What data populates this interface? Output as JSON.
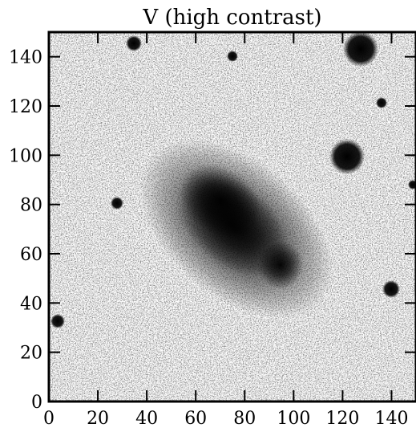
{
  "title": "V (high contrast)",
  "axes": {
    "x_ticks": [
      "0",
      "20",
      "40",
      "60",
      "80",
      "100",
      "120",
      "140"
    ],
    "y_ticks": [
      "0",
      "20",
      "40",
      "60",
      "80",
      "100",
      "120",
      "140"
    ],
    "x_range": [
      0,
      150
    ],
    "y_range": [
      0,
      150
    ]
  },
  "image": {
    "description": "inverted grayscale noisy astronomical field",
    "colormap": "gray_r"
  }
}
